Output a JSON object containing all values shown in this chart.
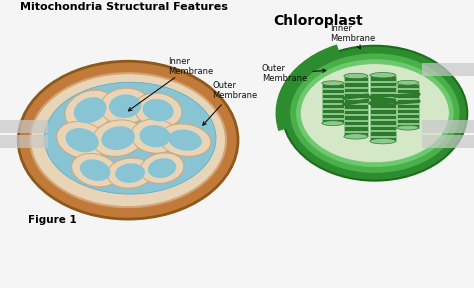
{
  "title_left": "Mitochondria Structural Features",
  "title_right": "Chloroplast",
  "label_inner_membrane": "Inner\nMembrane",
  "label_outer_membrane": "Outer\nMembrane",
  "label_inner_membrane_c": "Inner\nMembrane",
  "label_outer_membrane_c": "Outer\nMembrane",
  "label_figure": "Figure 1",
  "bg_color": "#f5f5f5",
  "mito_outer_color": "#c17a3a",
  "mito_outer_dark": "#8B5A1A",
  "mito_inner_color": "#d4a574",
  "mito_pale_color": "#e8d5b7",
  "mito_fluid_color": "#89c4d4",
  "mito_fluid_dark": "#5ba8bf",
  "chloro_outer_dark": "#1a6e1a",
  "chloro_outer_color": "#2d8c2d",
  "chloro_mid_color": "#4ab04a",
  "chloro_inner_color": "#6dc96d",
  "chloro_fluid_color": "#c8dfc0",
  "chloro_stroma_color": "#d4e8c8",
  "chloro_thylakoid_dark": "#1a5c1a",
  "chloro_thylakoid_color": "#2d7a2d",
  "chloro_thylakoid_light": "#8dc88d",
  "chloro_lumen_color": "#b8d8a0",
  "arrow_color": "#111111",
  "label_color": "#111111",
  "grey_bar": "#c8c8c8",
  "title_fontsize": 8,
  "label_fontsize": 6,
  "figure_fontsize": 7.5
}
